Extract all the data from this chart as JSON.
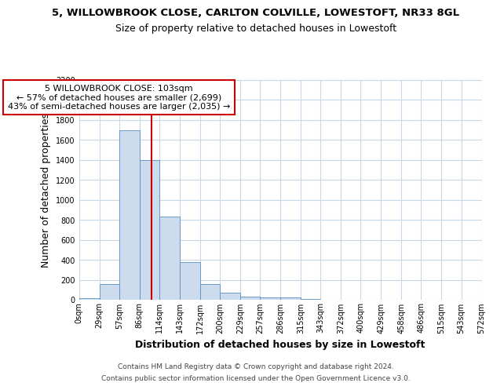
{
  "title1": "5, WILLOWBROOK CLOSE, CARLTON COLVILLE, LOWESTOFT, NR33 8GL",
  "title2": "Size of property relative to detached houses in Lowestoft",
  "xlabel": "Distribution of detached houses by size in Lowestoft",
  "ylabel": "Number of detached properties",
  "bar_edges": [
    0,
    29,
    57,
    86,
    114,
    143,
    172,
    200,
    229,
    257,
    286,
    315,
    343,
    372,
    400,
    429,
    458,
    486,
    515,
    543,
    572
  ],
  "bar_heights": [
    15,
    155,
    1700,
    1400,
    830,
    380,
    160,
    68,
    30,
    20,
    20,
    5,
    0,
    0,
    0,
    0,
    0,
    0,
    0,
    0
  ],
  "bar_color": "#ccdcee",
  "bar_edge_color": "#5a8fc2",
  "property_size": 103,
  "red_line_color": "#cc0000",
  "annotation_line1": "5 WILLOWBROOK CLOSE: 103sqm",
  "annotation_line2": "← 57% of detached houses are smaller (2,699)",
  "annotation_line3": "43% of semi-detached houses are larger (2,035) →",
  "annotation_box_color": "#ffffff",
  "annotation_box_edge": "#cc0000",
  "ylim": [
    0,
    2200
  ],
  "yticks": [
    0,
    200,
    400,
    600,
    800,
    1000,
    1200,
    1400,
    1600,
    1800,
    2000,
    2200
  ],
  "footer1": "Contains HM Land Registry data © Crown copyright and database right 2024.",
  "footer2": "Contains public sector information licensed under the Open Government Licence v3.0.",
  "background_color": "#ffffff",
  "grid_color": "#c8d8e8",
  "title1_fontsize": 9.5,
  "title2_fontsize": 9,
  "axis_label_fontsize": 9,
  "tick_fontsize": 7,
  "annotation_fontsize": 8,
  "footer_fontsize": 6.5
}
